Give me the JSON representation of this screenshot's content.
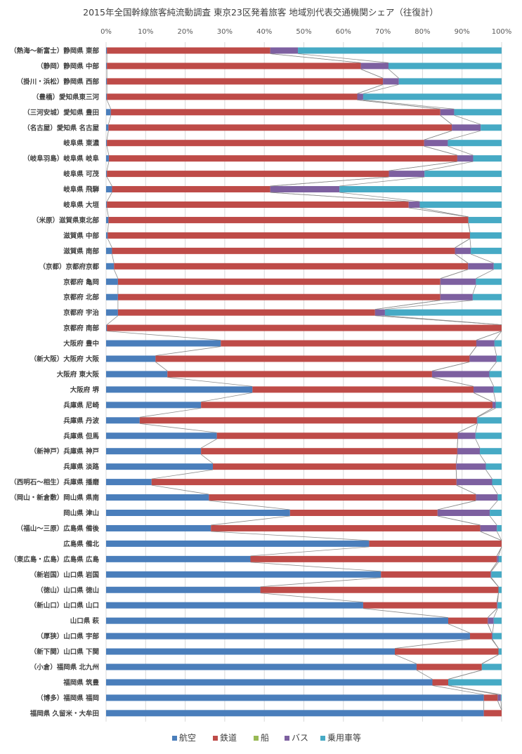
{
  "chart_data": {
    "type": "bar",
    "stacked": true,
    "orientation": "horizontal",
    "title": "2015年全国幹線旅客純流動調査 東京23区発着旅客 地域別代表交通機関シェア（往復計）",
    "x_ticks": [
      "0%",
      "10%",
      "20%",
      "30%",
      "40%",
      "50%",
      "60%",
      "70%",
      "80%",
      "90%",
      "100%"
    ],
    "xlim": [
      0,
      100
    ],
    "grid": true,
    "legend_position": "bottom",
    "series_colors": {
      "航空": "#4a7ebb",
      "鉄道": "#be4b48",
      "船": "#98b954",
      "バス": "#7d60a0",
      "乗用車等": "#46aac5"
    },
    "categories": [
      "（熱海～新富士）静岡県 東部",
      "（静岡）静岡県 中部",
      "（掛川・浜松）静岡県 西部",
      "（豊橋）愛知県東三河",
      "（三河安城）愛知県 豊田",
      "（名古屋）愛知県 名古屋",
      "岐阜県 東濃",
      "（岐阜羽島）岐阜県 岐阜",
      "岐阜県 可茂",
      "岐阜県 飛騨",
      "岐阜県 大垣",
      "（米原）滋賀県東北部",
      "滋賀県 中部",
      "滋賀県 南部",
      "（京都）京都府京都",
      "京都府 亀岡",
      "京都府 北部",
      "京都府 宇治",
      "京都府 南部",
      "大阪府 豊中",
      "（新大阪）大阪府 大阪",
      "大阪府 東大阪",
      "大阪府 堺",
      "兵庫県 尼崎",
      "兵庫県 丹波",
      "兵庫県 但馬",
      "（新神戸）兵庫県 神戸",
      "兵庫県 淡路",
      "（西明石～相生）兵庫県 播磨",
      "（岡山・新倉敷）岡山県 県南",
      "岡山県 津山",
      "（福山～三原）広島県 備後",
      "広島県 備北",
      "（東広島・広島）広島県 広島",
      "（新岩国）山口県 岩国",
      "（徳山）山口県 徳山",
      "（新山口）山口県 山口",
      "山口県 萩",
      "（厚狭）山口県 宇部",
      "（新下関）山口県 下関",
      "（小倉）福岡県 北九州",
      "福岡県 筑豊",
      "（博多）福岡県 福岡",
      "福岡県 久留米・大牟田"
    ],
    "series": [
      {
        "name": "航空",
        "values": [
          0.2,
          0.2,
          0.2,
          0.2,
          1.2,
          0.6,
          0.2,
          0.7,
          0.2,
          1.5,
          0.2,
          0.6,
          0.4,
          1.5,
          2,
          3,
          3,
          3,
          0.2,
          29,
          12.5,
          15.5,
          37,
          24,
          8.5,
          28,
          24,
          27,
          11.5,
          26,
          46.5,
          26.5,
          66.5,
          36.5,
          69.5,
          39,
          65,
          86.5,
          92,
          73,
          78.5,
          82.5,
          95.5,
          95.5
        ]
      },
      {
        "name": "鉄道",
        "values": [
          41.3,
          64.2,
          69.8,
          63.3,
          83.3,
          86.8,
          80.2,
          88.1,
          71.3,
          40,
          76.3,
          91,
          91.6,
          86.7,
          89.5,
          81.5,
          81.5,
          65,
          99.8,
          64.6,
          79.4,
          66.9,
          55.9,
          73.7,
          85.2,
          60.9,
          64.8,
          61.5,
          77.1,
          67.5,
          37.3,
          68.1,
          33.5,
          62.3,
          27.7,
          60.2,
          33.8,
          10,
          5.5,
          26.2,
          16.5,
          4,
          3.5,
          4.5
        ]
      },
      {
        "name": "船",
        "values": [
          0,
          0,
          0,
          0,
          0,
          0,
          0,
          0,
          0,
          0,
          0,
          0,
          0,
          0,
          0,
          0,
          0,
          0,
          0,
          0,
          0,
          0,
          0,
          0,
          0,
          0,
          0,
          0,
          0,
          0,
          0,
          0,
          0,
          0,
          0,
          0,
          0,
          0,
          0,
          0,
          0,
          0,
          0,
          0
        ]
      },
      {
        "name": "バス",
        "values": [
          7,
          7,
          4,
          1.5,
          3.5,
          7.3,
          6,
          4,
          9,
          17.5,
          2.8,
          0,
          0,
          4,
          6.5,
          9,
          8.2,
          2.5,
          0,
          4.6,
          6.8,
          14.5,
          5.1,
          0.8,
          0.2,
          4.5,
          5.7,
          7.5,
          9,
          5.5,
          13.2,
          4.2,
          0,
          0.4,
          0.2,
          0,
          0.2,
          1.5,
          0.2,
          0,
          0,
          0,
          0.8,
          0
        ]
      },
      {
        "name": "乗用車等",
        "values": [
          51.5,
          28.6,
          26,
          35,
          12,
          5.3,
          13.6,
          7.2,
          19.5,
          41,
          20.7,
          8.4,
          8,
          7.8,
          2,
          6.5,
          7.3,
          29.5,
          0,
          1.8,
          1.3,
          3.1,
          2,
          1.5,
          6.1,
          6.6,
          5.5,
          4,
          2.4,
          1,
          3,
          1.2,
          0,
          0.8,
          2.6,
          0.8,
          1,
          2,
          2.3,
          0.8,
          5,
          13.5,
          0.2,
          0
        ]
      }
    ]
  }
}
